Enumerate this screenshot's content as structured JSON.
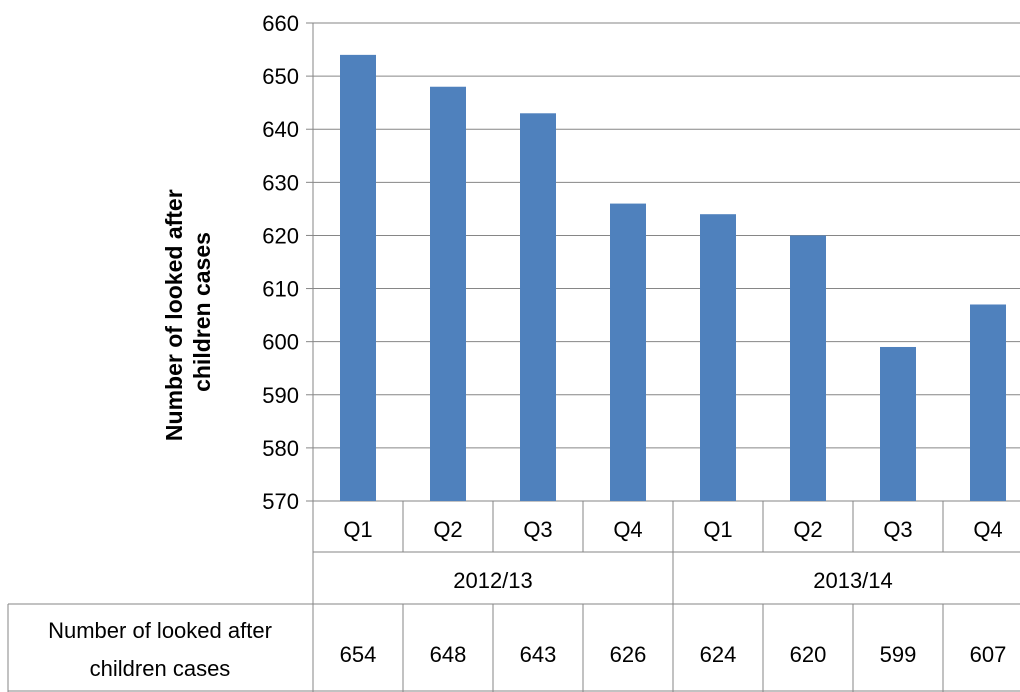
{
  "chart_data": {
    "type": "bar",
    "categories": [
      "Q1",
      "Q2",
      "Q3",
      "Q4",
      "Q1",
      "Q2",
      "Q3",
      "Q4"
    ],
    "groups": [
      {
        "label": "2012/13",
        "span": 4
      },
      {
        "label": "2013/14",
        "span": 4
      }
    ],
    "series": [
      {
        "name": "Number of looked after children cases",
        "values": [
          654,
          648,
          643,
          626,
          624,
          620,
          599,
          607
        ]
      }
    ],
    "ylabel": "Number of looked after children cases",
    "ylim": [
      570,
      660
    ],
    "yticks": [
      570,
      580,
      590,
      600,
      610,
      620,
      630,
      640,
      650,
      660
    ],
    "grid": true,
    "bar_color": "#4f81bd",
    "data_table": {
      "row_label_line1": "Number of looked after",
      "row_label_line2": "children cases"
    }
  }
}
